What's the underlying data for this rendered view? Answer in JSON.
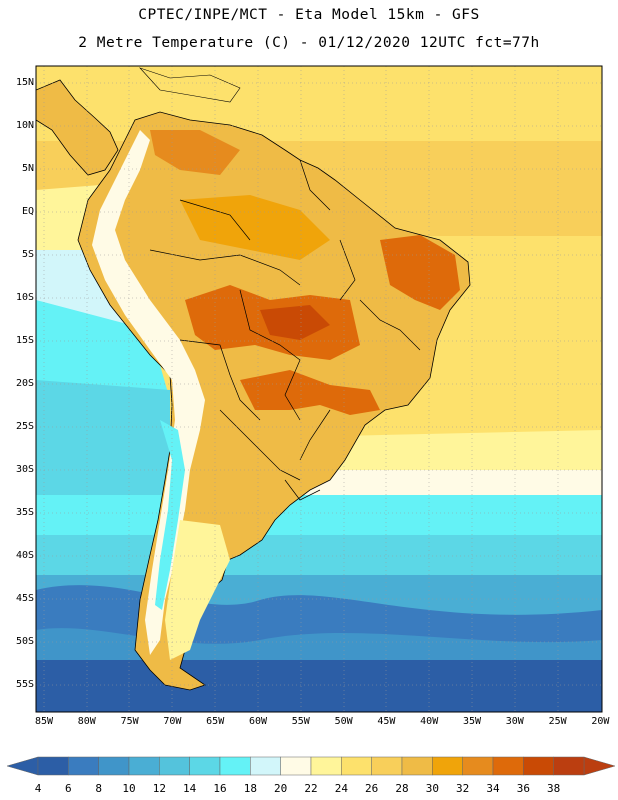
{
  "header": {
    "line1": "CPTEC/INPE/MCT -  Eta Model 15km - GFS",
    "line2": "2 Metre Temperature (C) - 01/12/2020 12UTC fct=77h"
  },
  "axes": {
    "lat_labels": [
      "15N",
      "10N",
      "5N",
      "EQ",
      "5S",
      "10S",
      "15S",
      "20S",
      "25S",
      "30S",
      "35S",
      "40S",
      "45S",
      "50S",
      "55S"
    ],
    "lon_labels": [
      "85W",
      "80W",
      "75W",
      "70W",
      "65W",
      "60W",
      "55W",
      "50W",
      "45W",
      "40W",
      "35W",
      "30W",
      "25W",
      "20W"
    ]
  },
  "colorbar": {
    "ticks": [
      "4",
      "6",
      "8",
      "10",
      "12",
      "14",
      "16",
      "18",
      "20",
      "22",
      "24",
      "26",
      "28",
      "30",
      "32",
      "34",
      "36",
      "38"
    ],
    "colors": [
      "#2c5ea6",
      "#3a7cbf",
      "#4095c9",
      "#4aaed4",
      "#54c3dc",
      "#5cd7e6",
      "#64f2f6",
      "#d2f6fa",
      "#fffbe6",
      "#fff59a",
      "#fde16c",
      "#f8cf5a",
      "#efbb46",
      "#f0a40a",
      "#e68b1e",
      "#de6a0a",
      "#c94a05",
      "#bb3e10"
    ]
  }
}
